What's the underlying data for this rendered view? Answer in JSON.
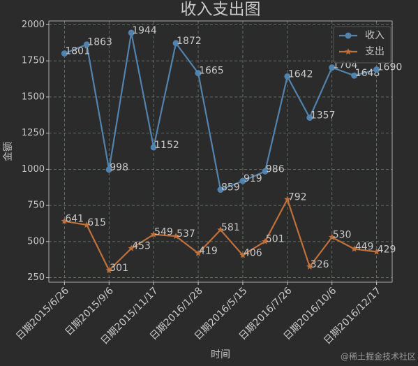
{
  "chart_data": {
    "type": "line",
    "title": "收入支出图",
    "xlabel": "时间",
    "ylabel": "金额",
    "categories": [
      "日期2015/6/26",
      null,
      "日期2015/9/6",
      null,
      "日期2015/11/17",
      null,
      "日期2016/1/28",
      null,
      "日期2016/5/15",
      null,
      "日期2016/7/26",
      null,
      "日期2016/10/6",
      null,
      "日期2016/12/17"
    ],
    "series": [
      {
        "name": "收入",
        "color": "#5283ad",
        "marker": "circle",
        "values": [
          1801,
          1863,
          998,
          1944,
          1152,
          1872,
          1665,
          859,
          919,
          986,
          1642,
          1357,
          1704,
          1648,
          1690
        ]
      },
      {
        "name": "支出",
        "color": "#c0703a",
        "marker": "star",
        "values": [
          641,
          615,
          301,
          453,
          549,
          537,
          419,
          581,
          406,
          501,
          792,
          326,
          530,
          449,
          429
        ]
      }
    ],
    "ylim": [
      219,
      2026
    ],
    "yticks": [
      250,
      500,
      750,
      1000,
      1250,
      1500,
      1750,
      2000
    ],
    "grid": true,
    "legend": "upper right",
    "watermark": "@稀土掘金技术社区"
  }
}
